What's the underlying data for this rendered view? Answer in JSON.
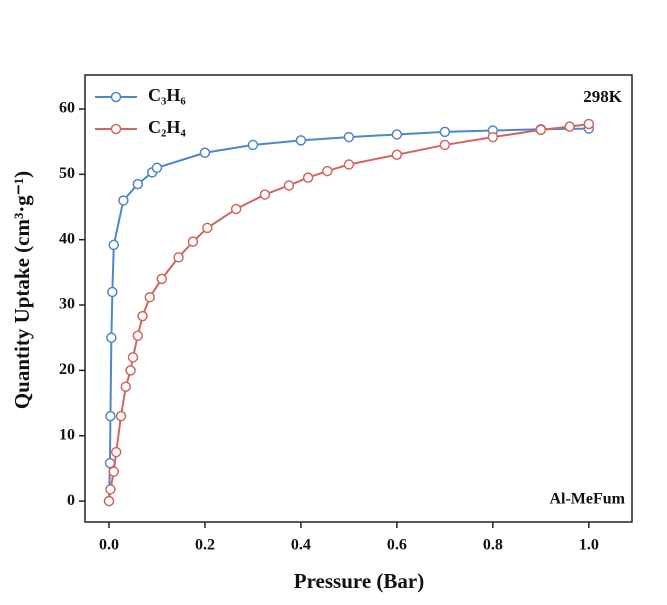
{
  "chart_data": {
    "type": "line",
    "x_label": "Pressure (Bar)",
    "y_label": "Quantity Uptake (cm³·g⁻¹)",
    "annotations": [
      "298K",
      "Al-MeFum"
    ],
    "xlim": [
      -0.05,
      1.09
    ],
    "ylim": [
      -3.2,
      65.2
    ],
    "xticks": [
      {
        "value": 0,
        "label": "0.0"
      },
      {
        "value": 0.2,
        "label": "0.2"
      },
      {
        "value": 0.4,
        "label": "0.4"
      },
      {
        "value": 0.6,
        "label": "0.6"
      },
      {
        "value": 0.8,
        "label": "0.8"
      },
      {
        "value": 1,
        "label": "1.0"
      }
    ],
    "yticks": [
      0,
      10,
      20,
      30,
      40,
      50,
      60
    ],
    "legend": "top-left",
    "series": [
      {
        "name": "C₃H₆",
        "color": "#4f86c6",
        "x": [
          0.0,
          0.002,
          0.003,
          0.005,
          0.007,
          0.01,
          0.03,
          0.06,
          0.09,
          0.1,
          0.2,
          0.3,
          0.4,
          0.5,
          0.6,
          0.7,
          0.8,
          0.9,
          1.0
        ],
        "values": [
          0,
          5.8,
          13,
          25,
          32,
          39.2,
          46,
          48.5,
          50.3,
          51,
          53.3,
          54.5,
          55.2,
          55.7,
          56.1,
          56.5,
          56.7,
          56.9,
          57
        ]
      },
      {
        "name": "C₂H₄",
        "color": "#d0675f",
        "x": [
          0.0,
          0.003,
          0.01,
          0.015,
          0.025,
          0.035,
          0.045,
          0.05,
          0.06,
          0.07,
          0.085,
          0.11,
          0.145,
          0.175,
          0.205,
          0.265,
          0.325,
          0.375,
          0.415,
          0.455,
          0.5,
          0.6,
          0.7,
          0.8,
          0.9,
          0.96,
          1.0
        ],
        "values": [
          0,
          1.8,
          4.5,
          7.5,
          13,
          17.5,
          20,
          22,
          25.3,
          28.3,
          31.2,
          34,
          37.3,
          39.7,
          41.8,
          44.7,
          46.9,
          48.3,
          49.5,
          50.5,
          51.5,
          53,
          54.5,
          55.7,
          56.8,
          57.3,
          57.7
        ]
      }
    ]
  }
}
